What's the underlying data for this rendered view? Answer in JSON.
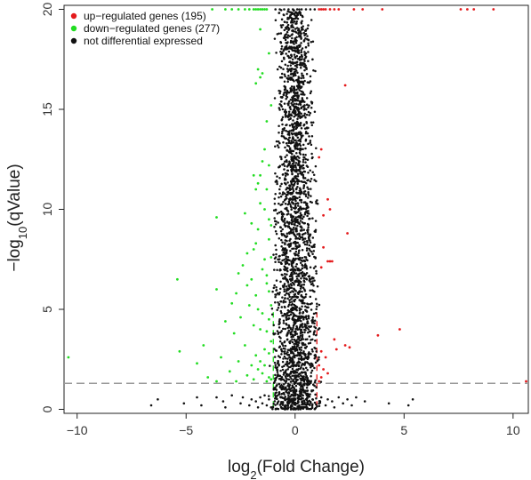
{
  "chart_data": {
    "type": "scatter",
    "title": "",
    "xlabel_base": "log",
    "xlabel_sub": "2",
    "xlabel_rest": "(Fold Change)",
    "ylabel_base": "−log",
    "ylabel_sub": "10",
    "ylabel_rest": "(qValue)",
    "xlim": [
      -10.6,
      10.7
    ],
    "ylim": [
      -0.2,
      20.2
    ],
    "xticks": [
      -10,
      -5,
      0,
      5,
      10
    ],
    "yticks": [
      0,
      5,
      10,
      15,
      20
    ],
    "xtick_labels": [
      "−10",
      "−5",
      "0",
      "5",
      "10"
    ],
    "ytick_labels": [
      "0",
      "5",
      "10",
      "15",
      "20"
    ],
    "grid": false,
    "legend_position": "top-left",
    "qvalue_threshold_line": 1.3,
    "fold_change_threshold_lines": [
      -1,
      1
    ],
    "colors": {
      "up": "#e41a1c",
      "down": "#22dd22",
      "ns": "#111111",
      "threshold": "#999999"
    },
    "series": [
      {
        "name": "up−regulated genes (195)",
        "color": "#e41a1c",
        "points": [
          [
            10.6,
            1.4
          ],
          [
            9.1,
            20
          ],
          [
            8.2,
            20
          ],
          [
            7.9,
            20
          ],
          [
            7.6,
            20
          ],
          [
            4.0,
            20
          ],
          [
            3.1,
            20
          ],
          [
            2.7,
            20
          ],
          [
            2.0,
            20
          ],
          [
            1.8,
            20
          ],
          [
            1.6,
            20
          ],
          [
            1.4,
            20
          ],
          [
            1.3,
            20
          ],
          [
            1.2,
            20
          ],
          [
            1.1,
            20
          ],
          [
            2.3,
            16.2
          ],
          [
            1.2,
            13.0
          ],
          [
            1.1,
            12.6
          ],
          [
            1.5,
            10.5
          ],
          [
            1.6,
            10.0
          ],
          [
            1.3,
            9.7
          ],
          [
            2.4,
            8.8
          ],
          [
            1.3,
            8.1
          ],
          [
            1.5,
            7.4
          ],
          [
            1.6,
            7.4
          ],
          [
            1.7,
            7.4
          ],
          [
            1.2,
            7.1
          ],
          [
            4.8,
            4.0
          ],
          [
            3.8,
            3.7
          ],
          [
            1.8,
            3.5
          ],
          [
            2.5,
            3.1
          ],
          [
            2.3,
            3.2
          ],
          [
            1.9,
            3.0
          ],
          [
            1.2,
            2.9
          ],
          [
            1.4,
            2.6
          ],
          [
            1.1,
            2.2
          ],
          [
            1.3,
            2.0
          ],
          [
            1.5,
            1.8
          ],
          [
            1.2,
            1.6
          ],
          [
            1.1,
            1.4
          ]
        ]
      },
      {
        "name": "down−regulated genes (277)",
        "color": "#22dd22",
        "points": [
          [
            -10.4,
            2.6
          ],
          [
            -3.8,
            20
          ],
          [
            -3.2,
            20
          ],
          [
            -2.9,
            20
          ],
          [
            -2.6,
            20
          ],
          [
            -2.3,
            20
          ],
          [
            -2.1,
            20
          ],
          [
            -1.9,
            20
          ],
          [
            -1.8,
            20
          ],
          [
            -1.7,
            20
          ],
          [
            -1.6,
            20
          ],
          [
            -1.5,
            20
          ],
          [
            -1.4,
            20
          ],
          [
            -1.3,
            20
          ],
          [
            -1.6,
            19.0
          ],
          [
            -1.7,
            17.0
          ],
          [
            -1.5,
            16.8
          ],
          [
            -1.6,
            16.6
          ],
          [
            -1.8,
            16.3
          ],
          [
            -1.3,
            14.4
          ],
          [
            -1.4,
            13.0
          ],
          [
            -1.5,
            12.4
          ],
          [
            -1.6,
            11.7
          ],
          [
            -1.7,
            11.3
          ],
          [
            -1.8,
            11.0
          ],
          [
            -1.9,
            11.7
          ],
          [
            -1.6,
            10.3
          ],
          [
            -1.4,
            10.0
          ],
          [
            -2.3,
            9.8
          ],
          [
            -3.6,
            9.6
          ],
          [
            -2.0,
            9.3
          ],
          [
            -1.2,
            9.5
          ],
          [
            -1.7,
            9.0
          ],
          [
            -1.8,
            8.3
          ],
          [
            -1.9,
            8.0
          ],
          [
            -2.2,
            7.8
          ],
          [
            -1.4,
            7.5
          ],
          [
            -2.4,
            7.2
          ],
          [
            -1.5,
            7.0
          ],
          [
            -2.6,
            6.8
          ],
          [
            -1.3,
            6.7
          ],
          [
            -2.0,
            6.5
          ],
          [
            -5.4,
            6.5
          ],
          [
            -3.6,
            6.0
          ],
          [
            -2.2,
            6.2
          ],
          [
            -2.7,
            5.8
          ],
          [
            -1.8,
            5.7
          ],
          [
            -2.9,
            5.3
          ],
          [
            -2.1,
            5.2
          ],
          [
            -1.7,
            5.0
          ],
          [
            -1.5,
            4.8
          ],
          [
            -2.5,
            4.6
          ],
          [
            -3.2,
            4.4
          ],
          [
            -1.9,
            4.2
          ],
          [
            -1.6,
            4.0
          ],
          [
            -2.8,
            3.8
          ],
          [
            -4.2,
            3.2
          ],
          [
            -5.3,
            2.9
          ],
          [
            -2.3,
            3.2
          ],
          [
            -1.4,
            3.0
          ],
          [
            -1.8,
            2.7
          ],
          [
            -3.4,
            2.6
          ],
          [
            -2.6,
            2.4
          ],
          [
            -4.5,
            2.3
          ],
          [
            -2.0,
            2.2
          ],
          [
            -1.7,
            2.0
          ],
          [
            -3.0,
            1.9
          ],
          [
            -1.5,
            1.8
          ],
          [
            -2.2,
            1.7
          ],
          [
            -4.0,
            1.6
          ],
          [
            -1.2,
            1.6
          ],
          [
            -1.9,
            1.5
          ],
          [
            -3.6,
            1.4
          ],
          [
            -2.7,
            1.4
          ],
          [
            -1.3,
            1.4
          ],
          [
            -1.6,
            2.4
          ],
          [
            -1.4,
            2.2
          ],
          [
            -1.1,
            1.5
          ],
          [
            -1.2,
            2.8
          ],
          [
            -1.1,
            3.4
          ],
          [
            -1.3,
            3.9
          ],
          [
            -1.2,
            4.5
          ],
          [
            -1.1,
            5.2
          ],
          [
            -1.2,
            5.9
          ],
          [
            -1.3,
            6.3
          ],
          [
            -1.1,
            7.6
          ],
          [
            -1.2,
            8.5
          ],
          [
            -1.1,
            9.2
          ],
          [
            -1.3,
            11.0
          ],
          [
            -1.2,
            12.2
          ],
          [
            -1.1,
            15.2
          ],
          [
            -1.2,
            17.8
          ]
        ]
      },
      {
        "name": "not differential expressed",
        "color": "#111111",
        "points": [
          [
            -6.6,
            0.2
          ],
          [
            -6.3,
            0.5
          ],
          [
            -5.1,
            0.3
          ],
          [
            -4.5,
            0.6
          ],
          [
            -4.3,
            0.2
          ],
          [
            -3.6,
            0.6
          ],
          [
            -3.3,
            0.4
          ],
          [
            -3.2,
            0.1
          ],
          [
            -2.9,
            0.7
          ],
          [
            -2.5,
            0.3
          ],
          [
            -2.4,
            0.6
          ],
          [
            -2.1,
            0.2
          ],
          [
            -2.0,
            0.5
          ],
          [
            -1.8,
            0.4
          ],
          [
            -1.7,
            0.1
          ],
          [
            -1.6,
            0.6
          ],
          [
            -1.5,
            0.3
          ],
          [
            -1.4,
            0.7
          ],
          [
            -1.3,
            0.2
          ],
          [
            -1.2,
            0.5
          ],
          [
            -1.1,
            0.1
          ],
          [
            1.1,
            0.3
          ],
          [
            1.2,
            0.6
          ],
          [
            1.4,
            0.2
          ],
          [
            1.5,
            0.5
          ],
          [
            1.7,
            0.4
          ],
          [
            1.8,
            0.1
          ],
          [
            2.0,
            0.6
          ],
          [
            2.2,
            0.3
          ],
          [
            2.4,
            0.5
          ],
          [
            2.6,
            0.2
          ],
          [
            2.8,
            0.6
          ],
          [
            3.2,
            0.4
          ],
          [
            4.3,
            0.3
          ],
          [
            5.2,
            0.2
          ],
          [
            5.4,
            0.5
          ],
          [
            -0.9,
            20
          ],
          [
            -0.7,
            20
          ],
          [
            -0.5,
            20
          ],
          [
            -0.3,
            20
          ],
          [
            -0.1,
            20
          ],
          [
            0.1,
            20
          ],
          [
            0.3,
            20
          ],
          [
            0.5,
            20
          ],
          [
            0.7,
            20
          ],
          [
            0.9,
            20
          ],
          [
            -0.6,
            19.5
          ],
          [
            0.6,
            19.2
          ],
          [
            -0.4,
            18.6
          ],
          [
            0.5,
            18.1
          ],
          [
            0.8,
            17.5
          ],
          [
            -0.8,
            17.0
          ],
          [
            0.7,
            16.4
          ],
          [
            -0.7,
            15.8
          ],
          [
            0.6,
            15.1
          ],
          [
            -0.6,
            14.5
          ],
          [
            0.5,
            13.8
          ],
          [
            -0.8,
            13.2
          ],
          [
            0.8,
            12.6
          ],
          [
            -0.5,
            12.0
          ],
          [
            0.7,
            11.4
          ],
          [
            -0.7,
            10.8
          ],
          [
            0.6,
            10.1
          ],
          [
            -0.6,
            9.5
          ],
          [
            0.9,
            8.9
          ],
          [
            -0.9,
            8.2
          ],
          [
            0.5,
            7.6
          ],
          [
            -0.5,
            7.0
          ],
          [
            0.8,
            6.4
          ],
          [
            -0.8,
            5.8
          ],
          [
            0.6,
            5.1
          ],
          [
            -0.7,
            4.5
          ],
          [
            0.7,
            3.9
          ],
          [
            -0.6,
            3.3
          ],
          [
            0.9,
            2.7
          ],
          [
            -0.9,
            2.1
          ],
          [
            0.5,
            1.6
          ],
          [
            -0.5,
            1.0
          ],
          [
            0.8,
            0.5
          ]
        ]
      }
    ]
  }
}
